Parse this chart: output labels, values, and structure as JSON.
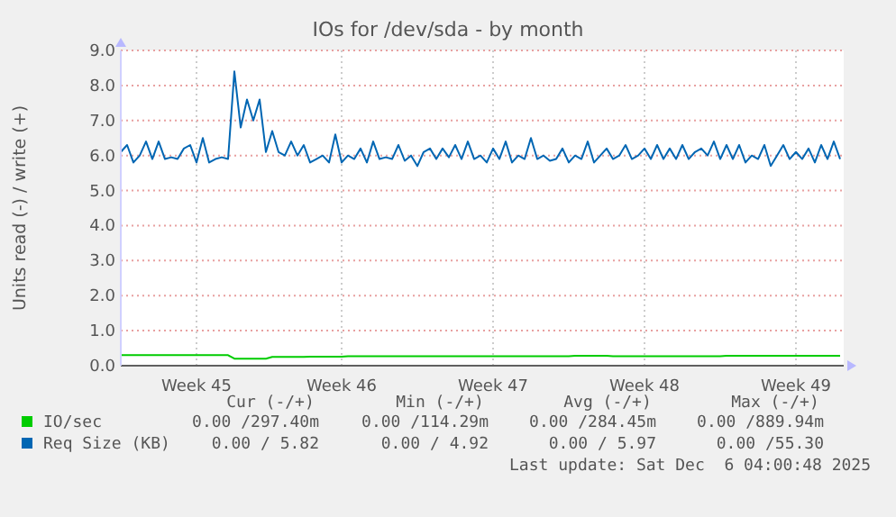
{
  "chart_data": {
    "type": "line",
    "title": "IOs for /dev/sda - by month",
    "ylabel": "Units read (-) / write (+)",
    "categories": [
      null,
      null,
      null,
      null,
      null,
      null,
      null,
      null,
      null,
      null,
      null,
      null,
      "Week 45",
      null,
      null,
      null,
      null,
      null,
      null,
      null,
      null,
      null,
      null,
      null,
      null,
      null,
      null,
      null,
      null,
      null,
      null,
      null,
      null,
      null,
      null,
      "Week 46",
      null,
      null,
      null,
      null,
      null,
      null,
      null,
      null,
      null,
      null,
      null,
      null,
      null,
      null,
      null,
      null,
      null,
      null,
      null,
      null,
      null,
      null,
      null,
      "Week 47",
      null,
      null,
      null,
      null,
      null,
      null,
      null,
      null,
      null,
      null,
      null,
      null,
      null,
      null,
      null,
      null,
      null,
      null,
      null,
      null,
      null,
      null,
      null,
      "Week 48",
      null,
      null,
      null,
      null,
      null,
      null,
      null,
      null,
      null,
      null,
      null,
      null,
      null,
      null,
      null,
      null,
      null,
      null,
      null,
      null,
      null,
      null,
      null,
      "Week 49",
      null,
      null,
      null,
      null,
      null,
      null,
      null
    ],
    "ylim": [
      0,
      9
    ],
    "yticks": [
      {
        "value": 0,
        "label": "0.0"
      },
      {
        "value": 1,
        "label": "1.0"
      },
      {
        "value": 2,
        "label": "2.0"
      },
      {
        "value": 3,
        "label": "3.0"
      },
      {
        "value": 4,
        "label": "4.0"
      },
      {
        "value": 5,
        "label": "5.0"
      },
      {
        "value": 6,
        "label": "6.0"
      },
      {
        "value": 7,
        "label": "7.0"
      },
      {
        "value": 8,
        "label": "8.0"
      },
      {
        "value": 9,
        "label": "9.0"
      }
    ],
    "grid": true,
    "legend": "bottom",
    "series": [
      {
        "name": "IO/sec",
        "color": "#00cc00",
        "values": [
          0.3,
          0.3,
          0.3,
          0.3,
          0.3,
          0.3,
          0.3,
          0.3,
          0.3,
          0.3,
          0.3,
          0.3,
          0.3,
          0.3,
          0.3,
          0.3,
          0.3,
          0.3,
          0.2,
          0.2,
          0.2,
          0.2,
          0.2,
          0.2,
          0.25,
          0.25,
          0.25,
          0.25,
          0.25,
          0.25,
          0.26,
          0.26,
          0.26,
          0.26,
          0.26,
          0.26,
          0.27,
          0.27,
          0.27,
          0.27,
          0.27,
          0.27,
          0.27,
          0.27,
          0.27,
          0.27,
          0.27,
          0.27,
          0.27,
          0.27,
          0.27,
          0.27,
          0.27,
          0.27,
          0.27,
          0.27,
          0.27,
          0.27,
          0.27,
          0.27,
          0.27,
          0.27,
          0.27,
          0.27,
          0.27,
          0.27,
          0.27,
          0.27,
          0.27,
          0.27,
          0.27,
          0.27,
          0.28,
          0.28,
          0.28,
          0.28,
          0.28,
          0.28,
          0.27,
          0.27,
          0.27,
          0.27,
          0.27,
          0.27,
          0.27,
          0.27,
          0.27,
          0.27,
          0.27,
          0.27,
          0.27,
          0.27,
          0.27,
          0.27,
          0.27,
          0.27,
          0.28,
          0.28,
          0.28,
          0.28,
          0.28,
          0.28,
          0.28,
          0.28,
          0.28,
          0.28,
          0.28,
          0.28,
          0.28,
          0.28,
          0.28,
          0.28,
          0.28,
          0.28,
          0.28
        ]
      },
      {
        "name": "Req Size (KB)",
        "color": "#0066b3",
        "values": [
          6.1,
          6.3,
          5.8,
          6.0,
          6.4,
          5.9,
          6.4,
          5.9,
          5.95,
          5.9,
          6.2,
          6.3,
          5.8,
          6.5,
          5.8,
          5.9,
          5.95,
          5.9,
          8.4,
          6.8,
          7.6,
          7.0,
          7.6,
          6.1,
          6.7,
          6.1,
          6.0,
          6.4,
          6.0,
          6.3,
          5.8,
          5.9,
          6.0,
          5.8,
          6.6,
          5.8,
          6.0,
          5.9,
          6.2,
          5.8,
          6.4,
          5.9,
          5.95,
          5.9,
          6.3,
          5.85,
          6.0,
          5.7,
          6.1,
          6.2,
          5.9,
          6.2,
          5.95,
          6.3,
          5.9,
          6.4,
          5.9,
          6.0,
          5.8,
          6.2,
          5.9,
          6.4,
          5.8,
          6.0,
          5.9,
          6.5,
          5.9,
          6.0,
          5.85,
          5.9,
          6.2,
          5.8,
          6.0,
          5.9,
          6.4,
          5.8,
          6.0,
          6.2,
          5.9,
          6.0,
          6.3,
          5.9,
          6.0,
          6.2,
          5.9,
          6.3,
          5.9,
          6.2,
          5.9,
          6.3,
          5.9,
          6.1,
          6.2,
          6.0,
          6.4,
          5.9,
          6.3,
          5.9,
          6.3,
          5.8,
          6.0,
          5.9,
          6.3,
          5.7,
          6.0,
          6.3,
          5.9,
          6.1,
          5.9,
          6.2,
          5.8,
          6.3,
          5.9,
          6.4,
          5.9
        ]
      }
    ],
    "annotations": [
      "Cur (-/+)",
      "Min (-/+)",
      "Avg (-/+)",
      "Max (-/+)",
      "0.00 /297.40m",
      "0.00 /114.29m",
      "0.00 /284.45m",
      "0.00 /889.94m",
      "0.00 / 5.82",
      "0.00 / 4.92",
      "0.00 / 5.97",
      "0.00 /55.30",
      "Last update: Sat Dec  6 04:00:48 2025"
    ]
  }
}
